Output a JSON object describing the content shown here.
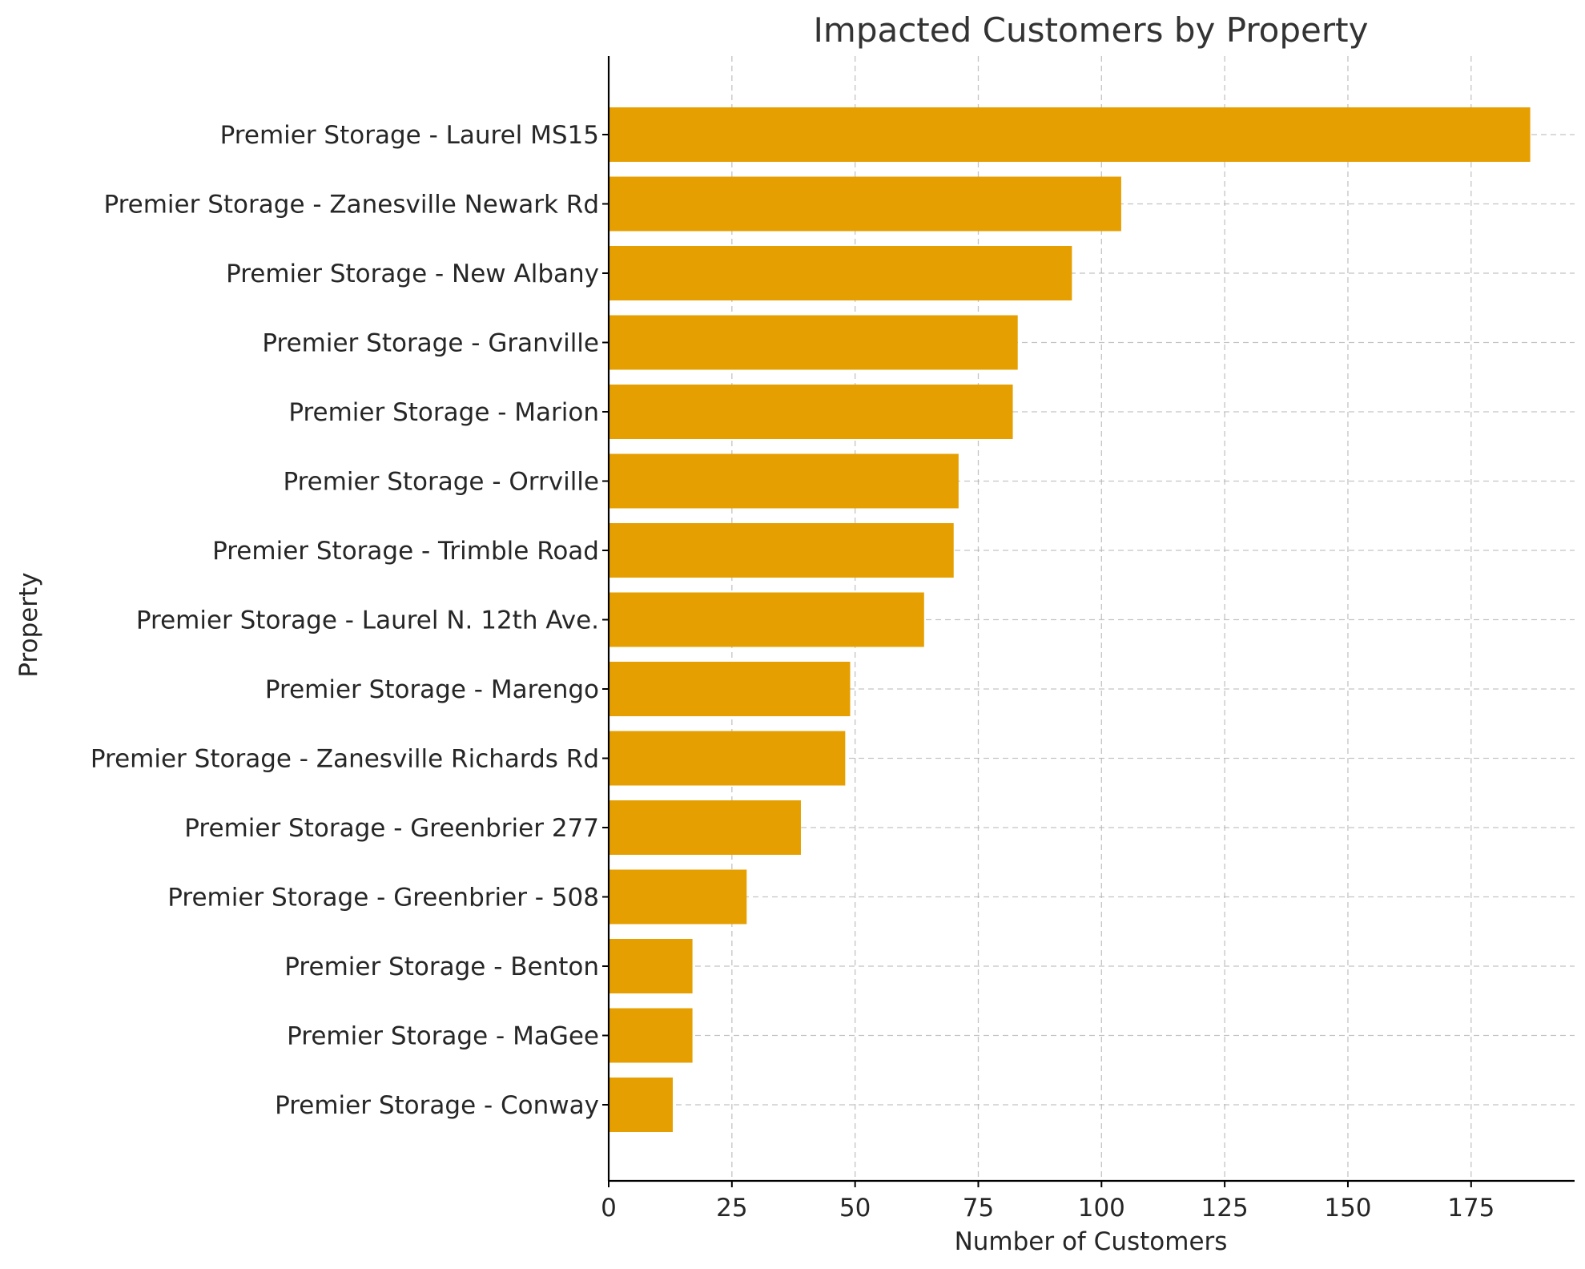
{
  "chart_data": {
    "type": "bar",
    "orientation": "horizontal",
    "title": "Impacted Customers by Property",
    "xlabel": "Number of Customers",
    "ylabel": "Property",
    "xlim": [
      0,
      196
    ],
    "xticks": [
      0,
      25,
      50,
      75,
      100,
      125,
      150,
      175
    ],
    "grid": true,
    "bar_color": "#E69F00",
    "categories": [
      "Premier Storage - Laurel MS15",
      "Premier Storage - Zanesville Newark Rd",
      "Premier Storage - New Albany",
      "Premier Storage - Granville",
      "Premier Storage - Marion",
      "Premier Storage - Orrville",
      "Premier Storage - Trimble Road",
      "Premier Storage - Laurel N. 12th Ave.",
      "Premier Storage - Marengo",
      "Premier Storage - Zanesville Richards Rd",
      "Premier Storage - Greenbrier 277",
      "Premier Storage - Greenbrier - 508",
      "Premier Storage - Benton",
      "Premier Storage - MaGee",
      "Premier Storage - Conway"
    ],
    "values": [
      187,
      104,
      94,
      83,
      82,
      71,
      70,
      64,
      49,
      48,
      39,
      28,
      17,
      17,
      13
    ]
  }
}
